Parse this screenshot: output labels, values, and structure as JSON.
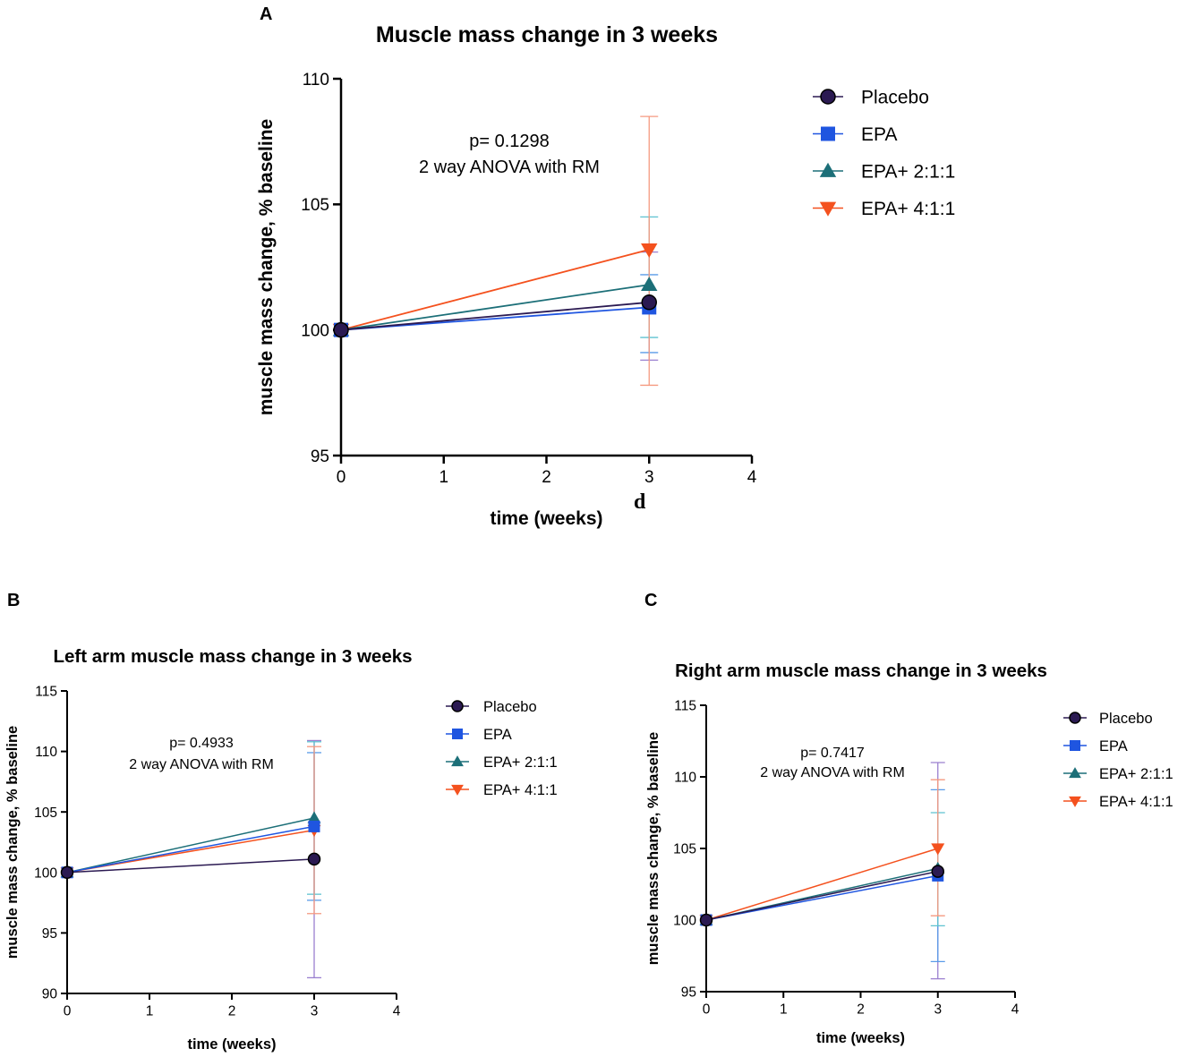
{
  "colors": {
    "Placebo": "#2b1a52",
    "EPA": "#1f55e0",
    "EPA+ 2:1:1": "#1c6f78",
    "EPA+ 4:1:1": "#f4511e",
    "Placebo_err": "#9a7fcf",
    "EPA_err": "#5a9be8",
    "EPA+ 2:1:1_err": "#5ec2d0",
    "EPA+ 4:1:1_err": "#f59a80"
  },
  "stray_mark": "d",
  "chart_data": [
    {
      "id": "A",
      "panel": "A",
      "type": "line",
      "title": "Muscle mass change in 3 weeks",
      "xlabel": "time (weeks)",
      "ylabel": "muscle mass change, % baseline",
      "xlim": [
        0,
        4
      ],
      "ylim": [
        95,
        110
      ],
      "xticks": [
        0,
        1,
        2,
        3,
        4
      ],
      "yticks": [
        95,
        100,
        105,
        110
      ],
      "annotation": [
        "p= 0.1298",
        "2 way ANOVA with RM"
      ],
      "legend_position": "right",
      "series": [
        {
          "name": "Placebo",
          "marker": "circle",
          "x": [
            0,
            3
          ],
          "y": [
            100,
            101.1
          ],
          "err_low": [
            null,
            98.8
          ],
          "err_high": [
            null,
            103.1
          ]
        },
        {
          "name": "EPA",
          "marker": "square",
          "x": [
            0,
            3
          ],
          "y": [
            100,
            100.9
          ],
          "err_low": [
            null,
            99.1
          ],
          "err_high": [
            null,
            102.2
          ]
        },
        {
          "name": "EPA+ 2:1:1",
          "marker": "triangle-up",
          "x": [
            0,
            3
          ],
          "y": [
            100,
            101.8
          ],
          "err_low": [
            null,
            99.7
          ],
          "err_high": [
            null,
            104.5
          ]
        },
        {
          "name": "EPA+ 4:1:1",
          "marker": "triangle-down",
          "x": [
            0,
            3
          ],
          "y": [
            100,
            103.2
          ],
          "err_low": [
            null,
            97.8
          ],
          "err_high": [
            null,
            108.5
          ]
        }
      ]
    },
    {
      "id": "B",
      "panel": "B",
      "type": "line",
      "title": "Left arm muscle mass change in 3 weeks",
      "xlabel": "time (weeks)",
      "ylabel": "muscle mass change, % baseline",
      "xlim": [
        0,
        4
      ],
      "ylim": [
        90,
        115
      ],
      "xticks": [
        0,
        1,
        2,
        3,
        4
      ],
      "yticks": [
        90,
        95,
        100,
        105,
        110,
        115
      ],
      "annotation": [
        "p= 0.4933",
        "2 way ANOVA with RM"
      ],
      "legend_position": "right",
      "series": [
        {
          "name": "Placebo",
          "marker": "circle",
          "x": [
            0,
            3
          ],
          "y": [
            100,
            101.1
          ],
          "err_low": [
            null,
            91.3
          ],
          "err_high": [
            null,
            110.9
          ]
        },
        {
          "name": "EPA",
          "marker": "square",
          "x": [
            0,
            3
          ],
          "y": [
            100,
            103.8
          ],
          "err_low": [
            null,
            97.7
          ],
          "err_high": [
            null,
            109.9
          ]
        },
        {
          "name": "EPA+ 2:1:1",
          "marker": "triangle-up",
          "x": [
            0,
            3
          ],
          "y": [
            100,
            104.5
          ],
          "err_low": [
            null,
            98.2
          ],
          "err_high": [
            null,
            110.8
          ]
        },
        {
          "name": "EPA+ 4:1:1",
          "marker": "triangle-down",
          "x": [
            0,
            3
          ],
          "y": [
            100,
            103.5
          ],
          "err_low": [
            null,
            96.6
          ],
          "err_high": [
            null,
            110.4
          ]
        }
      ]
    },
    {
      "id": "C",
      "panel": "C",
      "type": "line",
      "title": "Right arm muscle mass change in 3 weeks",
      "xlabel": "time (weeks)",
      "ylabel": "muscle mass change, % baseline",
      "xlim": [
        0,
        4
      ],
      "ylim": [
        95,
        115
      ],
      "xticks": [
        0,
        1,
        2,
        3,
        4
      ],
      "yticks": [
        95,
        100,
        105,
        110,
        115
      ],
      "annotation": [
        "p= 0.7417",
        "2 way ANOVA with RM"
      ],
      "legend_position": "right",
      "series": [
        {
          "name": "Placebo",
          "marker": "circle",
          "x": [
            0,
            3
          ],
          "y": [
            100,
            103.4
          ],
          "err_low": [
            null,
            95.9
          ],
          "err_high": [
            null,
            111.0
          ]
        },
        {
          "name": "EPA",
          "marker": "square",
          "x": [
            0,
            3
          ],
          "y": [
            100,
            103.1
          ],
          "err_low": [
            null,
            97.1
          ],
          "err_high": [
            null,
            109.1
          ]
        },
        {
          "name": "EPA+ 2:1:1",
          "marker": "triangle-up",
          "x": [
            0,
            3
          ],
          "y": [
            100,
            103.6
          ],
          "err_low": [
            null,
            99.6
          ],
          "err_high": [
            null,
            107.5
          ]
        },
        {
          "name": "EPA+ 4:1:1",
          "marker": "triangle-down",
          "x": [
            0,
            3
          ],
          "y": [
            100,
            105.0
          ],
          "err_low": [
            null,
            100.3
          ],
          "err_high": [
            null,
            109.8
          ]
        }
      ]
    }
  ]
}
